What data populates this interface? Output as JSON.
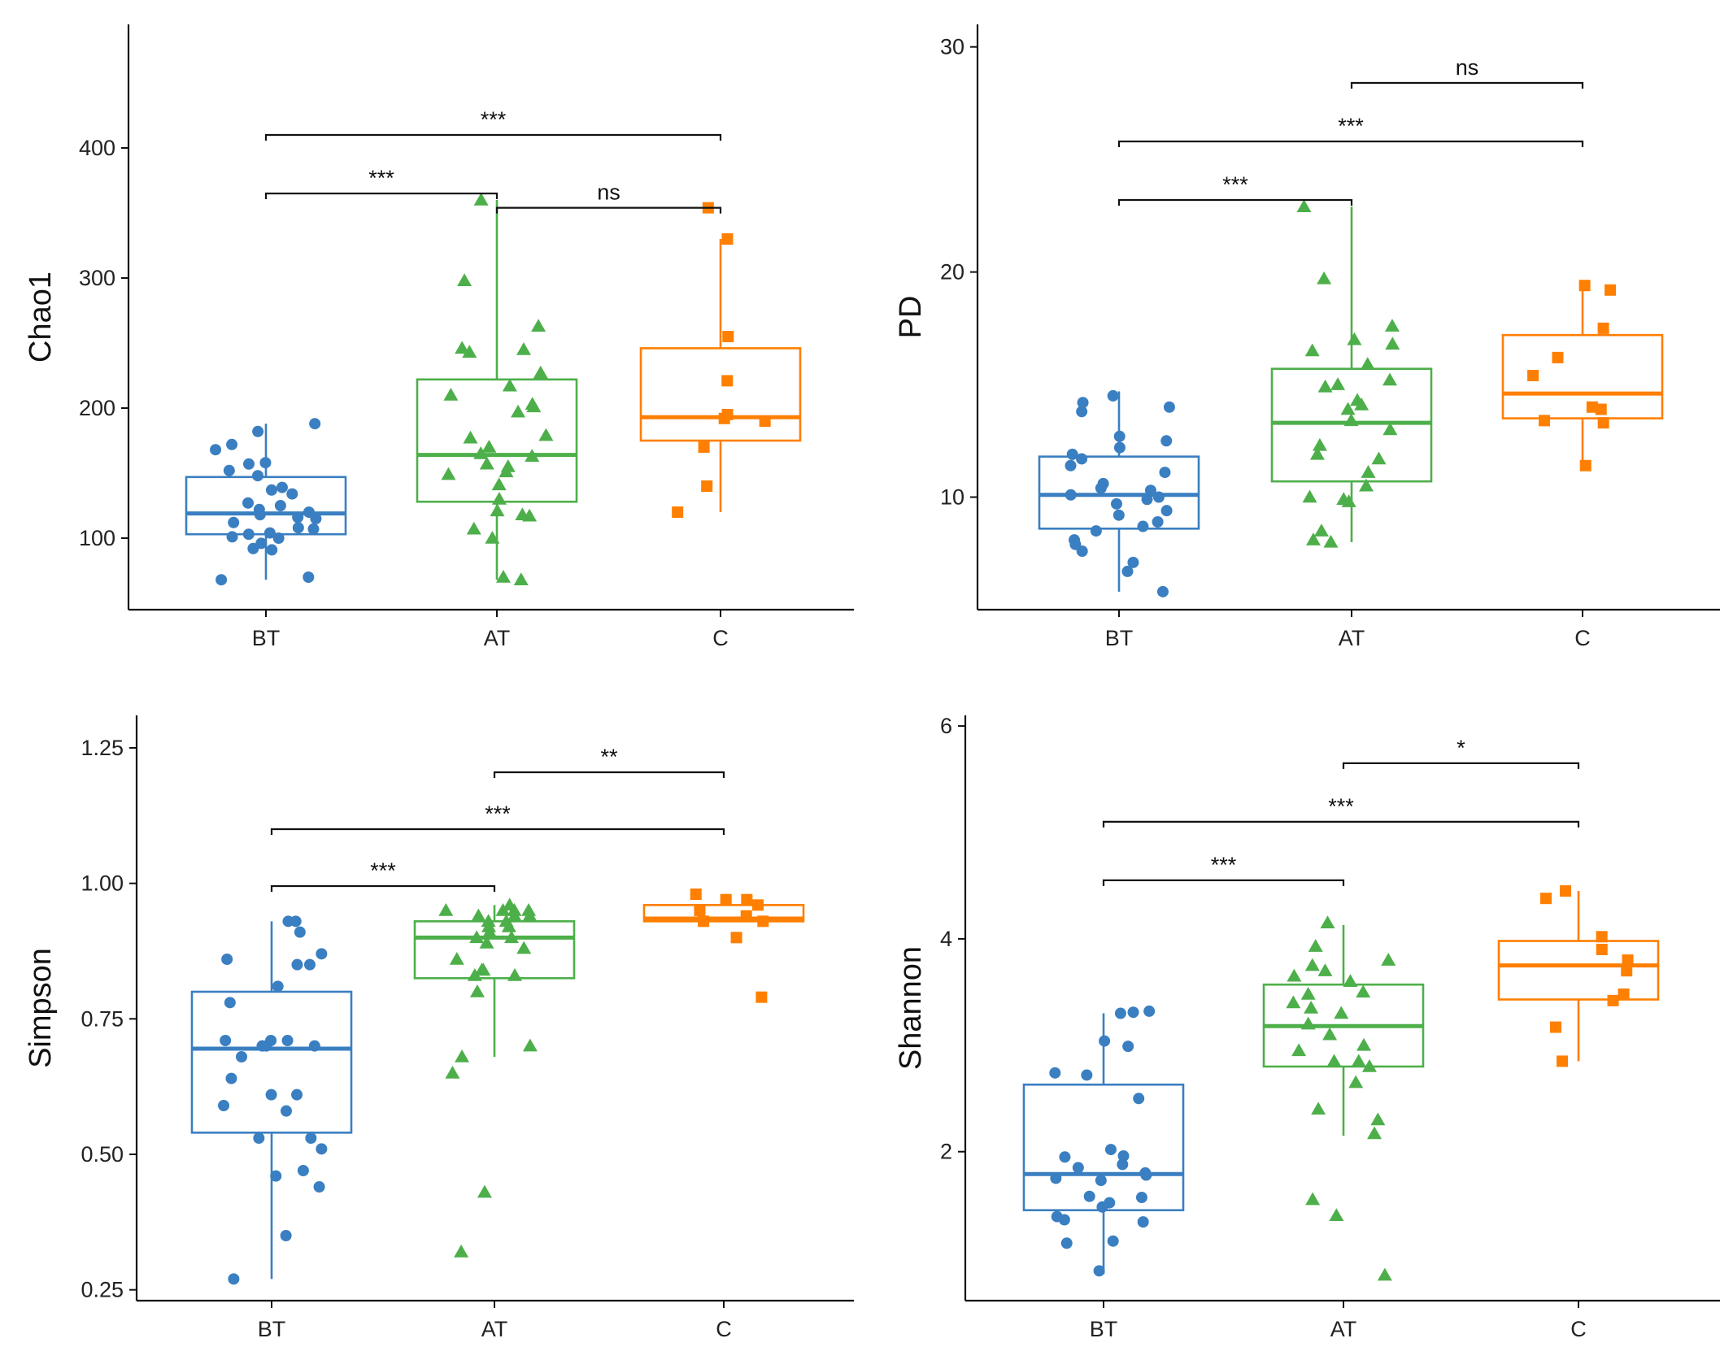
{
  "chart_data": [
    {
      "type": "box",
      "ylabel": "Chao1",
      "xlabel": "",
      "categories": [
        "BT",
        "AT",
        "C"
      ],
      "colors": [
        "#3a7fc1",
        "#4daf4a",
        "#ff7f00"
      ],
      "markers": [
        "circle",
        "triangle",
        "square"
      ],
      "ylim": [
        45,
        495
      ],
      "yticks": [
        100,
        200,
        300,
        400
      ],
      "ytick_labels": [
        "100",
        "200",
        "300",
        "400"
      ],
      "boxes": [
        {
          "name": "BT",
          "whisker_low": 68,
          "q1": 103,
          "median": 119,
          "q3": 147,
          "whisker_high": 188
        },
        {
          "name": "AT",
          "whisker_low": 68,
          "q1": 128,
          "median": 164,
          "q3": 222,
          "whisker_high": 360
        },
        {
          "name": "C",
          "whisker_low": 120,
          "q1": 175,
          "median": 193,
          "q3": 246,
          "whisker_high": 330
        }
      ],
      "points": [
        [
          70,
          68,
          91,
          92,
          96,
          100,
          101,
          103,
          104,
          107,
          108,
          112,
          115,
          116,
          118,
          120,
          122,
          125,
          127,
          134,
          137,
          139,
          148,
          152,
          157,
          158,
          168,
          172,
          182,
          188
        ],
        [
          68,
          70,
          100,
          107,
          117,
          118,
          121,
          130,
          141,
          149,
          151,
          155,
          157,
          163,
          165,
          170,
          177,
          179,
          197,
          201,
          203,
          210,
          217,
          227,
          243,
          245,
          246,
          263,
          298,
          360
        ],
        [
          120,
          140,
          170,
          190,
          192,
          195,
          221,
          255,
          330,
          354
        ]
      ],
      "significance": [
        {
          "from": "BT",
          "to": "AT",
          "label": "***",
          "y": 365
        },
        {
          "from": "BT",
          "to": "C",
          "label": "***",
          "y": 410
        },
        {
          "from": "AT",
          "to": "C",
          "label": "ns",
          "y": 354
        }
      ]
    },
    {
      "type": "box",
      "ylabel": "PD",
      "xlabel": "",
      "categories": [
        "BT",
        "AT",
        "C"
      ],
      "colors": [
        "#3a7fc1",
        "#4daf4a",
        "#ff7f00"
      ],
      "markers": [
        "circle",
        "triangle",
        "square"
      ],
      "ylim": [
        5,
        31
      ],
      "yticks": [
        10,
        20,
        30
      ],
      "ytick_labels": [
        "10",
        "20",
        "30"
      ],
      "boxes": [
        {
          "name": "BT",
          "whisker_low": 5.8,
          "q1": 8.6,
          "median": 10.1,
          "q3": 11.8,
          "whisker_high": 14.7
        },
        {
          "name": "AT",
          "whisker_low": 8.0,
          "q1": 10.7,
          "median": 13.3,
          "q3": 15.7,
          "whisker_high": 22.9
        },
        {
          "name": "C",
          "whisker_low": 11.4,
          "q1": 13.5,
          "median": 14.6,
          "q3": 17.2,
          "whisker_high": 19.4
        }
      ],
      "points": [
        [
          5.8,
          6.7,
          7.1,
          7.6,
          7.9,
          8.1,
          8.5,
          8.7,
          8.9,
          9.2,
          9.4,
          9.7,
          9.9,
          10.0,
          10.1,
          10.3,
          10.4,
          10.6,
          11.1,
          11.4,
          11.7,
          11.9,
          12.2,
          12.5,
          12.7,
          13.8,
          14.0,
          14.2,
          14.5
        ],
        [
          8.0,
          8.1,
          8.5,
          9.8,
          9.9,
          10.0,
          10.5,
          11.1,
          11.7,
          11.9,
          12.3,
          13.0,
          13.4,
          13.9,
          14.1,
          14.3,
          14.9,
          15.0,
          15.2,
          15.9,
          16.5,
          16.8,
          17.0,
          17.6,
          19.7,
          22.9
        ],
        [
          11.4,
          13.3,
          13.4,
          13.9,
          14.0,
          15.4,
          16.2,
          17.5,
          19.2,
          19.4
        ]
      ],
      "significance": [
        {
          "from": "BT",
          "to": "AT",
          "label": "***",
          "y": 23.2
        },
        {
          "from": "BT",
          "to": "C",
          "label": "***",
          "y": 25.8
        },
        {
          "from": "AT",
          "to": "C",
          "label": "ns",
          "y": 28.4
        }
      ]
    },
    {
      "type": "box",
      "ylabel": "Simpson",
      "xlabel": "",
      "categories": [
        "BT",
        "AT",
        "C"
      ],
      "colors": [
        "#3a7fc1",
        "#4daf4a",
        "#ff7f00"
      ],
      "markers": [
        "circle",
        "triangle",
        "square"
      ],
      "ylim": [
        0.23,
        1.31
      ],
      "yticks": [
        0.25,
        0.5,
        0.75,
        1.0,
        1.25
      ],
      "ytick_labels": [
        "0.25",
        "0.50",
        "0.75",
        "1.00",
        "1.25"
      ],
      "boxes": [
        {
          "name": "BT",
          "whisker_low": 0.27,
          "q1": 0.54,
          "median": 0.695,
          "q3": 0.8,
          "whisker_high": 0.93
        },
        {
          "name": "AT",
          "whisker_low": 0.68,
          "q1": 0.825,
          "median": 0.9,
          "q3": 0.93,
          "whisker_high": 0.96
        },
        {
          "name": "C",
          "whisker_low": 0.93,
          "q1": 0.93,
          "median": 0.935,
          "q3": 0.96,
          "whisker_high": 0.98
        }
      ],
      "points": [
        [
          0.27,
          0.35,
          0.44,
          0.46,
          0.47,
          0.51,
          0.53,
          0.53,
          0.58,
          0.59,
          0.61,
          0.61,
          0.64,
          0.68,
          0.7,
          0.7,
          0.7,
          0.71,
          0.71,
          0.71,
          0.78,
          0.81,
          0.85,
          0.85,
          0.86,
          0.87,
          0.91,
          0.93,
          0.93
        ],
        [
          0.32,
          0.43,
          0.65,
          0.68,
          0.7,
          0.8,
          0.83,
          0.83,
          0.84,
          0.84,
          0.86,
          0.88,
          0.89,
          0.9,
          0.9,
          0.91,
          0.92,
          0.92,
          0.93,
          0.93,
          0.94,
          0.94,
          0.94,
          0.95,
          0.95,
          0.95,
          0.95,
          0.96
        ],
        [
          0.79,
          0.9,
          0.93,
          0.93,
          0.94,
          0.95,
          0.96,
          0.97,
          0.97,
          0.98
        ]
      ],
      "significance": [
        {
          "from": "BT",
          "to": "AT",
          "label": "***",
          "y": 0.995
        },
        {
          "from": "BT",
          "to": "C",
          "label": "***",
          "y": 1.1
        },
        {
          "from": "AT",
          "to": "C",
          "label": "**",
          "y": 1.205
        }
      ]
    },
    {
      "type": "box",
      "ylabel": "Shannon",
      "xlabel": "",
      "categories": [
        "BT",
        "AT",
        "C"
      ],
      "colors": [
        "#3a7fc1",
        "#4daf4a",
        "#ff7f00"
      ],
      "markers": [
        "circle",
        "triangle",
        "square"
      ],
      "ylim": [
        0.6,
        6.1
      ],
      "yticks": [
        2,
        4,
        6
      ],
      "ytick_labels": [
        "2",
        "4",
        "6"
      ],
      "boxes": [
        {
          "name": "BT",
          "whisker_low": 0.85,
          "q1": 1.45,
          "median": 1.79,
          "q3": 2.63,
          "whisker_high": 3.3
        },
        {
          "name": "AT",
          "whisker_low": 2.15,
          "q1": 2.8,
          "median": 3.18,
          "q3": 3.57,
          "whisker_high": 4.13
        },
        {
          "name": "C",
          "whisker_low": 2.85,
          "q1": 3.43,
          "median": 3.75,
          "q3": 3.98,
          "whisker_high": 4.45
        }
      ],
      "points": [
        [
          0.88,
          1.14,
          1.16,
          1.34,
          1.36,
          1.39,
          1.48,
          1.52,
          1.57,
          1.58,
          1.73,
          1.75,
          1.78,
          1.8,
          1.85,
          1.88,
          1.95,
          1.96,
          2.02,
          2.5,
          2.72,
          2.74,
          2.99,
          3.04,
          3.3,
          3.31,
          3.32
        ],
        [
          0.84,
          1.4,
          1.55,
          2.17,
          2.3,
          2.4,
          2.65,
          2.8,
          2.85,
          2.85,
          2.95,
          3.0,
          3.1,
          3.2,
          3.3,
          3.35,
          3.4,
          3.48,
          3.5,
          3.6,
          3.65,
          3.7,
          3.75,
          3.8,
          3.93,
          4.15
        ],
        [
          2.85,
          3.17,
          3.42,
          3.48,
          3.7,
          3.8,
          3.9,
          4.02,
          4.38,
          4.45
        ]
      ],
      "significance": [
        {
          "from": "BT",
          "to": "AT",
          "label": "***",
          "y": 4.55
        },
        {
          "from": "BT",
          "to": "C",
          "label": "***",
          "y": 5.1
        },
        {
          "from": "AT",
          "to": "C",
          "label": "*",
          "y": 5.65
        }
      ]
    }
  ]
}
